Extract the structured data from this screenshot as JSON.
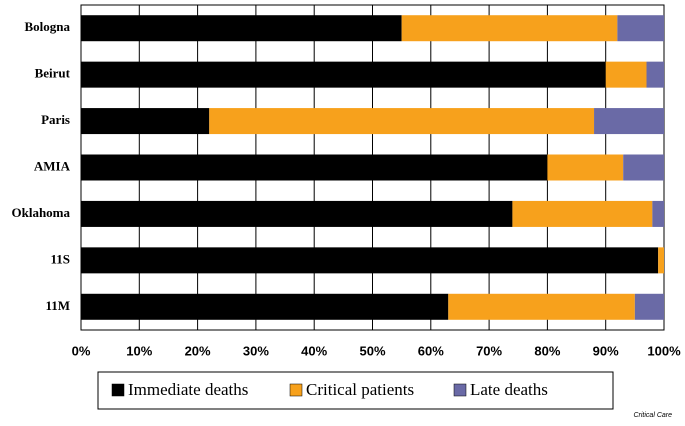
{
  "chart_data": {
    "type": "stacked-barh",
    "categories": [
      "Bologna",
      "Beirut",
      "Paris",
      "AMIA",
      "Oklahoma",
      "11S",
      "11M"
    ],
    "series": [
      {
        "name": "Immediate deaths",
        "color": "#000000",
        "values": [
          55,
          90,
          22,
          80,
          74,
          99,
          63
        ]
      },
      {
        "name": "Critical patients",
        "color": "#f7a11c",
        "values": [
          37,
          7,
          66,
          13,
          24,
          1,
          32
        ]
      },
      {
        "name": "Late deaths",
        "color": "#6a6aa6",
        "values": [
          8,
          3,
          12,
          7,
          2,
          0,
          5
        ]
      }
    ],
    "xlim": [
      0,
      100
    ],
    "xticks": [
      {
        "value": 0,
        "label": "0%"
      },
      {
        "value": 10,
        "label": "10%"
      },
      {
        "value": 20,
        "label": "20%"
      },
      {
        "value": 30,
        "label": "30%"
      },
      {
        "value": 40,
        "label": "40%"
      },
      {
        "value": 50,
        "label": "50%"
      },
      {
        "value": 60,
        "label": "60%"
      },
      {
        "value": 70,
        "label": "70%"
      },
      {
        "value": 80,
        "label": "80%"
      },
      {
        "value": 90,
        "label": "90%"
      },
      {
        "value": 100,
        "label": "100%"
      }
    ],
    "grid": true,
    "source": "Critical Care"
  }
}
